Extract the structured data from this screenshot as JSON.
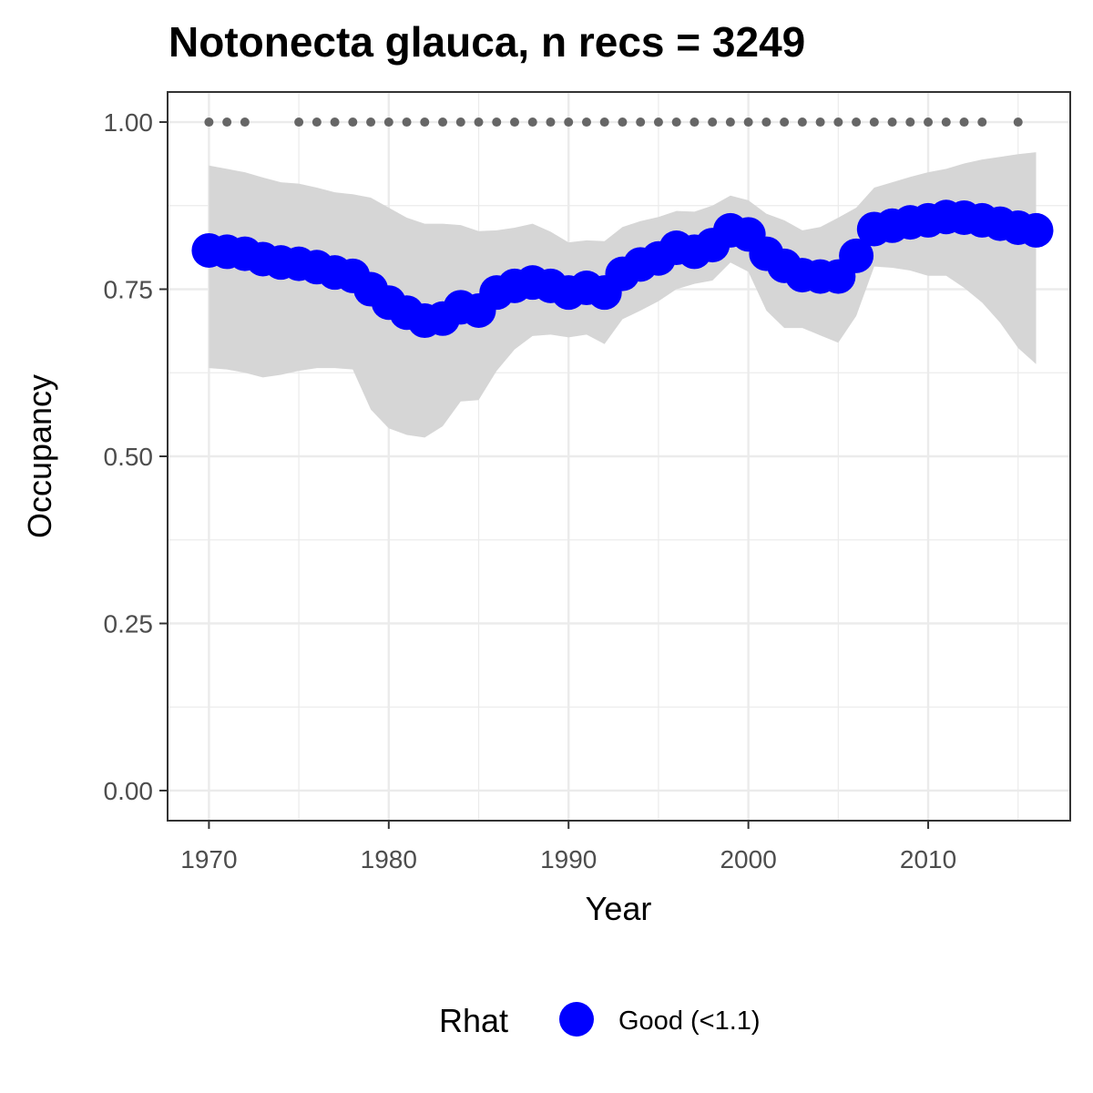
{
  "chart_data": {
    "type": "line",
    "title": "Notonecta glauca, n recs = 3249",
    "xlabel": "Year",
    "ylabel": "Occupancy",
    "xlim": [
      1967.7,
      2017.9
    ],
    "ylim": [
      -0.045,
      1.045
    ],
    "x_ticks": [
      1970,
      1980,
      1990,
      2000,
      2010
    ],
    "x_tick_labels": [
      "1970",
      "1980",
      "1990",
      "2000",
      "2010"
    ],
    "y_ticks": [
      0,
      0.25,
      0.5,
      0.75,
      1
    ],
    "y_tick_labels": [
      "0.00",
      "0.25",
      "0.50",
      "0.75",
      "1.00"
    ],
    "grid": true,
    "years": [
      1970,
      1971,
      1972,
      1973,
      1974,
      1975,
      1976,
      1977,
      1978,
      1979,
      1980,
      1981,
      1982,
      1983,
      1984,
      1985,
      1986,
      1987,
      1988,
      1989,
      1990,
      1991,
      1992,
      1993,
      1994,
      1995,
      1996,
      1997,
      1998,
      1999,
      2000,
      2001,
      2002,
      2003,
      2004,
      2005,
      2006,
      2007,
      2008,
      2009,
      2010,
      2011,
      2012,
      2013,
      2014,
      2015,
      2016
    ],
    "series": [
      {
        "values": [
          0.808,
          0.806,
          0.803,
          0.795,
          0.79,
          0.788,
          0.783,
          0.775,
          0.77,
          0.75,
          0.73,
          0.715,
          0.703,
          0.706,
          0.723,
          0.718,
          0.745,
          0.755,
          0.76,
          0.755,
          0.745,
          0.752,
          0.745,
          0.773,
          0.787,
          0.796,
          0.812,
          0.806,
          0.816,
          0.838,
          0.832,
          0.803,
          0.785,
          0.771,
          0.769,
          0.769,
          0.8,
          0.84,
          0.845,
          0.85,
          0.853,
          0.858,
          0.857,
          0.853,
          0.848,
          0.842,
          0.838
        ],
        "lower": [
          0.632,
          0.63,
          0.625,
          0.618,
          0.622,
          0.628,
          0.632,
          0.632,
          0.63,
          0.57,
          0.542,
          0.532,
          0.528,
          0.545,
          0.582,
          0.584,
          0.628,
          0.66,
          0.68,
          0.682,
          0.678,
          0.682,
          0.668,
          0.705,
          0.718,
          0.732,
          0.75,
          0.758,
          0.763,
          0.79,
          0.776,
          0.718,
          0.692,
          0.692,
          0.681,
          0.67,
          0.71,
          0.784,
          0.782,
          0.778,
          0.77,
          0.77,
          0.752,
          0.73,
          0.7,
          0.662,
          0.638
        ],
        "upper": [
          0.935,
          0.93,
          0.925,
          0.917,
          0.91,
          0.908,
          0.902,
          0.895,
          0.892,
          0.887,
          0.872,
          0.857,
          0.848,
          0.848,
          0.846,
          0.837,
          0.838,
          0.842,
          0.848,
          0.836,
          0.82,
          0.823,
          0.822,
          0.843,
          0.852,
          0.858,
          0.867,
          0.866,
          0.875,
          0.89,
          0.883,
          0.863,
          0.853,
          0.838,
          0.843,
          0.857,
          0.872,
          0.902,
          0.91,
          0.918,
          0.925,
          0.93,
          0.938,
          0.944,
          0.948,
          0.952,
          0.955
        ]
      }
    ],
    "record_years": [
      1970,
      1971,
      1972,
      1975,
      1976,
      1977,
      1978,
      1979,
      1980,
      1981,
      1982,
      1983,
      1984,
      1985,
      1986,
      1987,
      1988,
      1989,
      1990,
      1991,
      1992,
      1993,
      1994,
      1995,
      1996,
      1997,
      1998,
      1999,
      2000,
      2001,
      2002,
      2003,
      2004,
      2005,
      2006,
      2007,
      2008,
      2009,
      2010,
      2011,
      2012,
      2013,
      2015
    ],
    "record_value": 1.0,
    "legend": {
      "title": "Rhat",
      "label": "Good (<1.1)",
      "position": "bottom"
    },
    "colors": {
      "points": "#0000ff",
      "ribbon": "#d6d6d6",
      "record_dots": "#666666",
      "grid": "#ebebeb",
      "panel_border": "#333333"
    }
  }
}
